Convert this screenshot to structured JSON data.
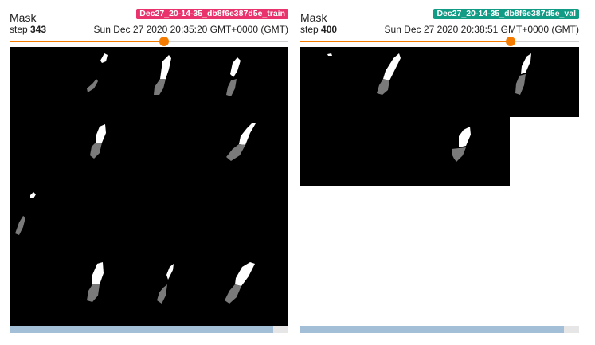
{
  "cards": [
    {
      "id": "train",
      "title": "Mask",
      "run_name": "Dec27_20-14-35_db8f6e387d5e_train",
      "run_color": "#e8336d",
      "step_label": "step",
      "step": "343",
      "timestamp": "Sun Dec 27 2020 20:35:20 GMT+0000 (GMT)",
      "slider_position": 0.555,
      "image_description_icon": "segmentation-mask-image-grid",
      "grid": {
        "rows": 4,
        "cols": 4
      }
    },
    {
      "id": "val",
      "title": "Mask",
      "run_name": "Dec27_20-14-35_db8f6e387d5e_val",
      "run_color": "#129c86",
      "step_label": "step",
      "step": "400",
      "timestamp": "Sun Dec 27 2020 20:38:51 GMT+0000 (GMT)",
      "slider_position": 0.755,
      "image_description_icon": "segmentation-mask-image-grid",
      "grid": {
        "rows": 2,
        "cols": 3
      }
    }
  ],
  "colors": {
    "slider_accent": "#f57c00",
    "mask_foreground": "#ffffff",
    "mask_prediction": "#7a7a7a",
    "image_background": "#000000"
  }
}
